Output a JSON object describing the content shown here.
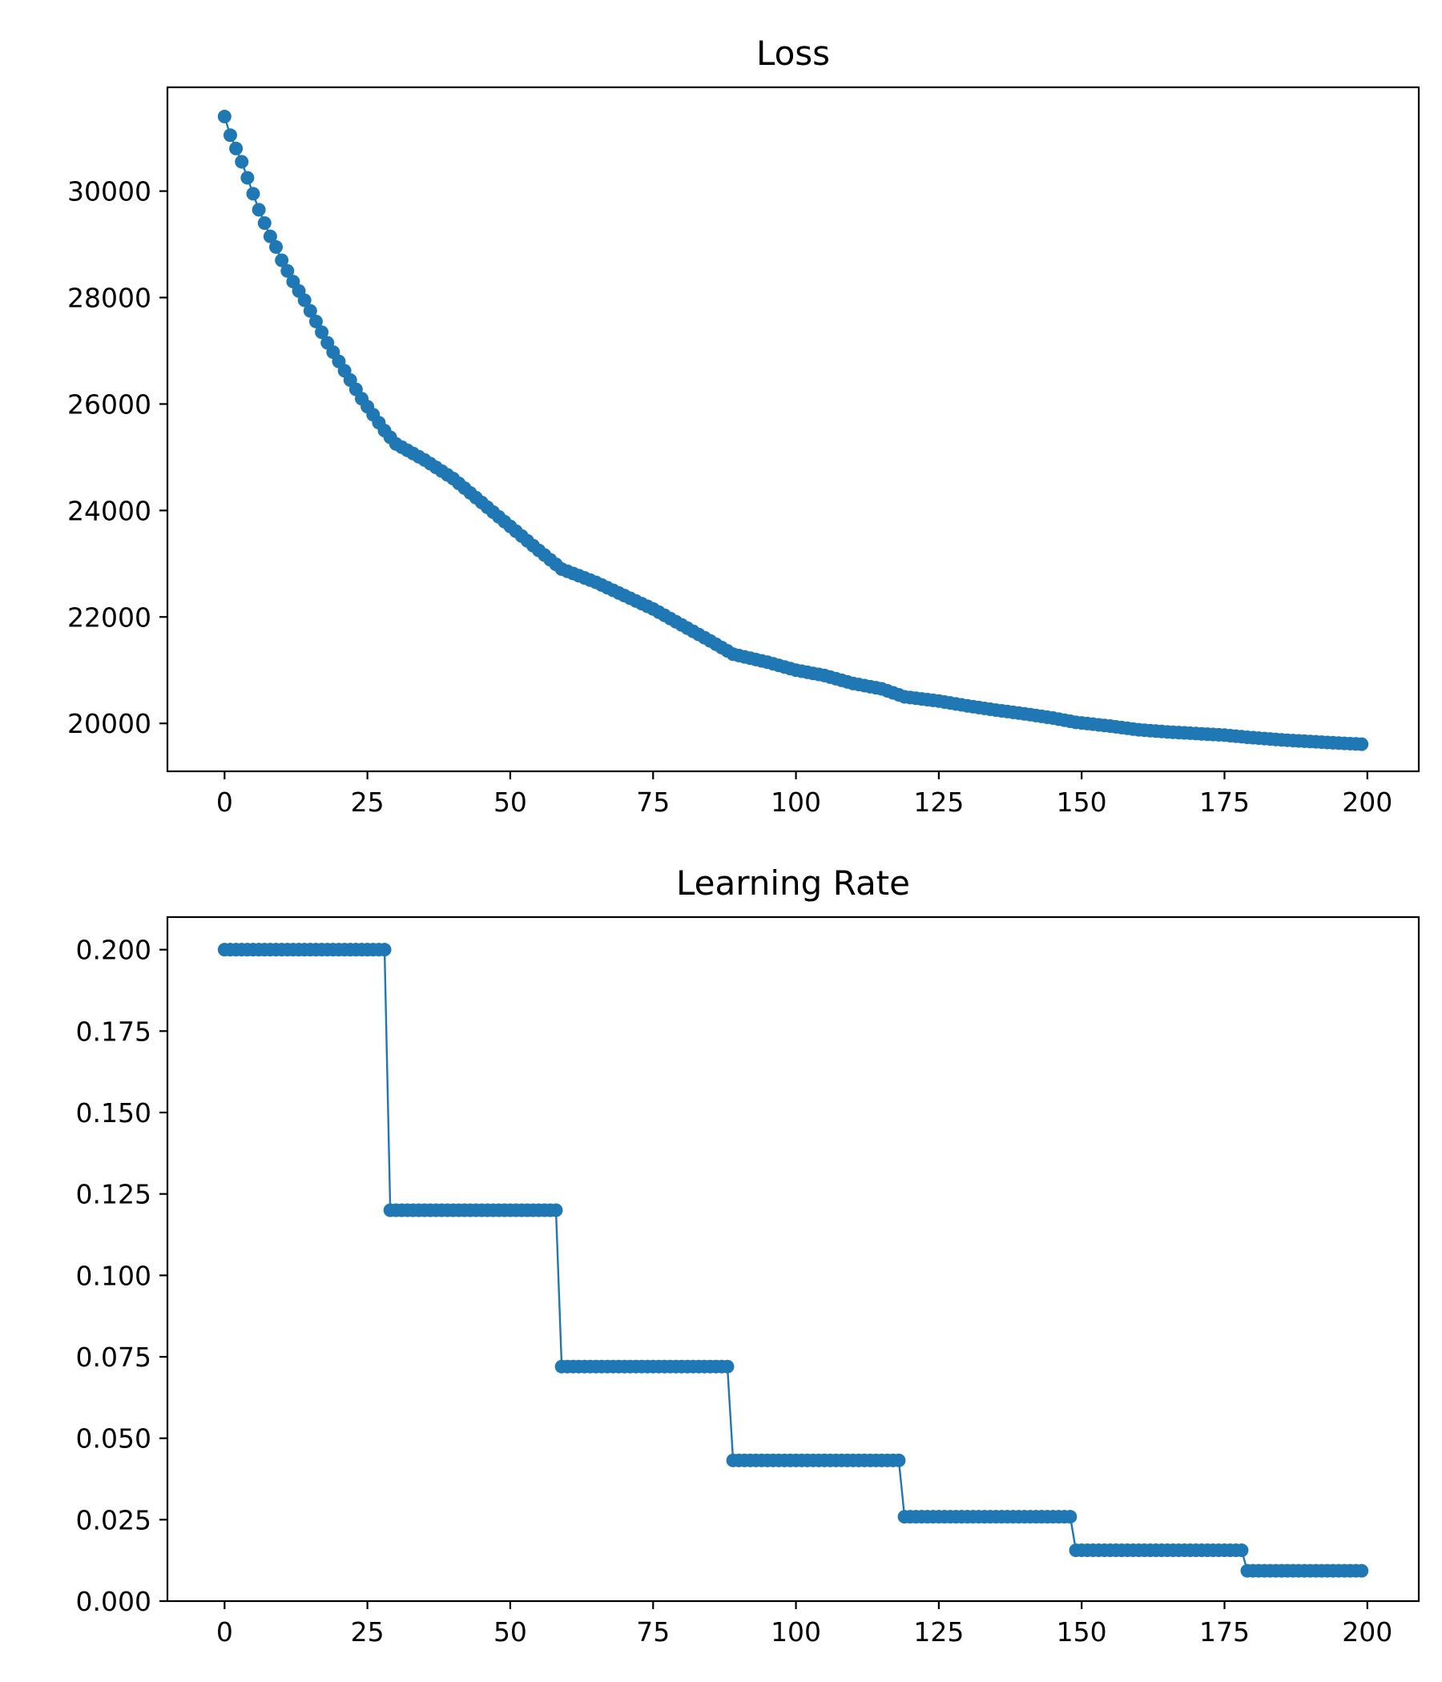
{
  "chart_data": [
    {
      "type": "line",
      "title": "Loss",
      "xlabel": "",
      "ylabel": "",
      "xlim": [
        -10,
        209
      ],
      "ylim": [
        19100,
        31950
      ],
      "xticks": [
        0,
        25,
        50,
        75,
        100,
        125,
        150,
        175,
        200
      ],
      "yticks": [
        20000,
        22000,
        24000,
        26000,
        28000,
        30000
      ],
      "grid": false,
      "marker": "circle",
      "color": "#1f77b4",
      "x_range": [
        0,
        199
      ],
      "key_points": [
        [
          0,
          31400
        ],
        [
          1,
          31050
        ],
        [
          2,
          30800
        ],
        [
          3,
          30550
        ],
        [
          4,
          30250
        ],
        [
          5,
          29950
        ],
        [
          6,
          29650
        ],
        [
          7,
          29400
        ],
        [
          8,
          29150
        ],
        [
          9,
          28950
        ],
        [
          10,
          28700
        ],
        [
          12,
          28300
        ],
        [
          14,
          27950
        ],
        [
          16,
          27550
        ],
        [
          18,
          27150
        ],
        [
          20,
          26800
        ],
        [
          22,
          26450
        ],
        [
          24,
          26100
        ],
        [
          26,
          25800
        ],
        [
          28,
          25500
        ],
        [
          30,
          25250
        ],
        [
          35,
          24950
        ],
        [
          40,
          24600
        ],
        [
          45,
          24150
        ],
        [
          50,
          23700
        ],
        [
          55,
          23250
        ],
        [
          59,
          22900
        ],
        [
          65,
          22650
        ],
        [
          70,
          22400
        ],
        [
          75,
          22150
        ],
        [
          80,
          21850
        ],
        [
          85,
          21550
        ],
        [
          89,
          21300
        ],
        [
          95,
          21150
        ],
        [
          100,
          21000
        ],
        [
          105,
          20900
        ],
        [
          110,
          20750
        ],
        [
          115,
          20650
        ],
        [
          119,
          20500
        ],
        [
          125,
          20420
        ],
        [
          130,
          20330
        ],
        [
          135,
          20250
        ],
        [
          140,
          20180
        ],
        [
          145,
          20100
        ],
        [
          149,
          20020
        ],
        [
          155,
          19950
        ],
        [
          160,
          19880
        ],
        [
          165,
          19840
        ],
        [
          170,
          19810
        ],
        [
          175,
          19780
        ],
        [
          179,
          19740
        ],
        [
          185,
          19690
        ],
        [
          190,
          19660
        ],
        [
          195,
          19630
        ],
        [
          199,
          19610
        ]
      ]
    },
    {
      "type": "line",
      "title": "Learning Rate",
      "xlabel": "",
      "ylabel": "",
      "xlim": [
        -10,
        209
      ],
      "ylim": [
        0.0,
        0.21
      ],
      "xticks": [
        0,
        25,
        50,
        75,
        100,
        125,
        150,
        175,
        200
      ],
      "yticks": [
        0.0,
        0.025,
        0.05,
        0.075,
        0.1,
        0.125,
        0.15,
        0.175,
        0.2
      ],
      "ytick_labels": [
        "0.000",
        "0.025",
        "0.050",
        "0.075",
        "0.100",
        "0.125",
        "0.150",
        "0.175",
        "0.200"
      ],
      "grid": false,
      "marker": "circle",
      "color": "#1f77b4",
      "x_range": [
        0,
        199
      ],
      "step_schedule": [
        {
          "from": 0,
          "to": 28,
          "value": 0.2
        },
        {
          "from": 29,
          "to": 58,
          "value": 0.12
        },
        {
          "from": 59,
          "to": 88,
          "value": 0.072
        },
        {
          "from": 89,
          "to": 118,
          "value": 0.0432
        },
        {
          "from": 119,
          "to": 148,
          "value": 0.0259
        },
        {
          "from": 149,
          "to": 178,
          "value": 0.0156
        },
        {
          "from": 179,
          "to": 199,
          "value": 0.0093
        }
      ]
    }
  ]
}
